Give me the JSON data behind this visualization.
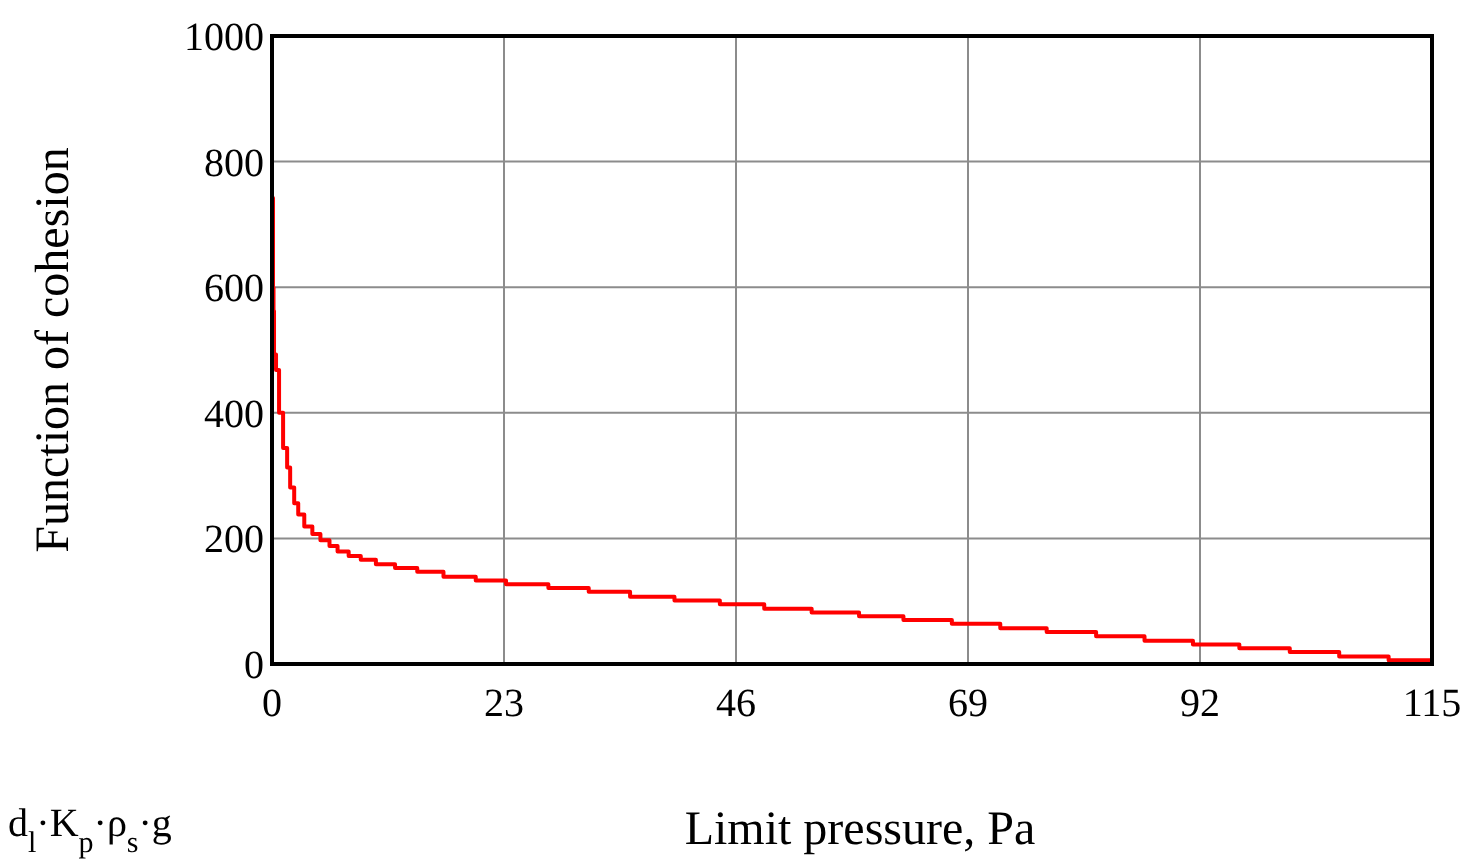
{
  "chart_data": {
    "type": "step",
    "xlabel": "Limit pressure, Pa",
    "ylabel": "Function of cohesion",
    "annotations": [
      "d$_{l}$·K$_{p}$·ρ$_{s}$·g"
    ],
    "x": [
      0,
      0.1,
      0.15,
      0.2,
      0.4,
      0.7,
      1.1,
      1.5,
      1.8,
      2.2,
      2.6,
      3.2,
      4,
      4.8,
      5.7,
      6.5,
      7.6,
      8.8,
      10.3,
      12.2,
      14.4,
      17,
      20.2,
      23.2,
      27.4,
      31.4,
      35.5,
      39.9,
      44.4,
      48.8,
      53.5,
      58.2,
      62.6,
      67.4,
      72.2,
      76.8,
      81.7,
      86.5,
      91.3,
      95.9,
      100.9,
      105.8,
      110.7,
      115
    ],
    "series": [
      {
        "color": "#ff0000",
        "values": [
          742,
          599,
          562,
          493,
          468,
          400,
          344,
          313,
          281,
          256,
          238,
          219,
          207,
          197,
          188,
          179,
          172,
          166,
          159,
          153,
          147,
          139,
          133,
          127,
          121,
          115,
          107,
          101,
          95,
          88,
          82,
          76,
          70,
          64,
          57,
          51,
          44,
          37,
          31,
          25,
          19,
          12,
          6,
          6
        ]
      }
    ],
    "xlim": [
      0,
      115
    ],
    "xticks": [
      0,
      23,
      46,
      69,
      92,
      115
    ],
    "ylim": [
      0,
      1000
    ],
    "yticks": [
      0,
      200,
      400,
      600,
      800,
      1000
    ],
    "grid": true,
    "marker": "none",
    "line_style": "solid"
  }
}
